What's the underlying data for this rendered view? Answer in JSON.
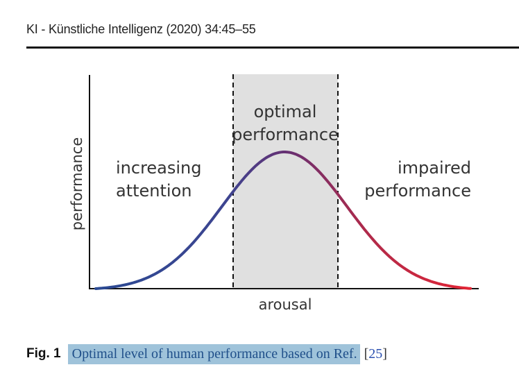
{
  "running_head": "KI - Künstliche Intelligenz (2020) 34:45–55",
  "figure": {
    "zone_label_line1": "optimal",
    "zone_label_line2": "performance",
    "left_label_line1": "increasing",
    "left_label_line2": "attention",
    "right_label_line1": "impaired",
    "right_label_line2": "performance",
    "xlabel": "arousal",
    "ylabel": "performance",
    "colors": {
      "curve_start": "#2b4a93",
      "curve_peak": "#6a2f70",
      "curve_end": "#e32535",
      "zone_fill": "#e0e0e0",
      "axis": "#111111"
    }
  },
  "caption": {
    "label": "Fig. 1",
    "text": "Optimal level of human performance based on Ref.",
    "ref_open": "[",
    "ref_number": "25",
    "ref_close": "]"
  }
}
